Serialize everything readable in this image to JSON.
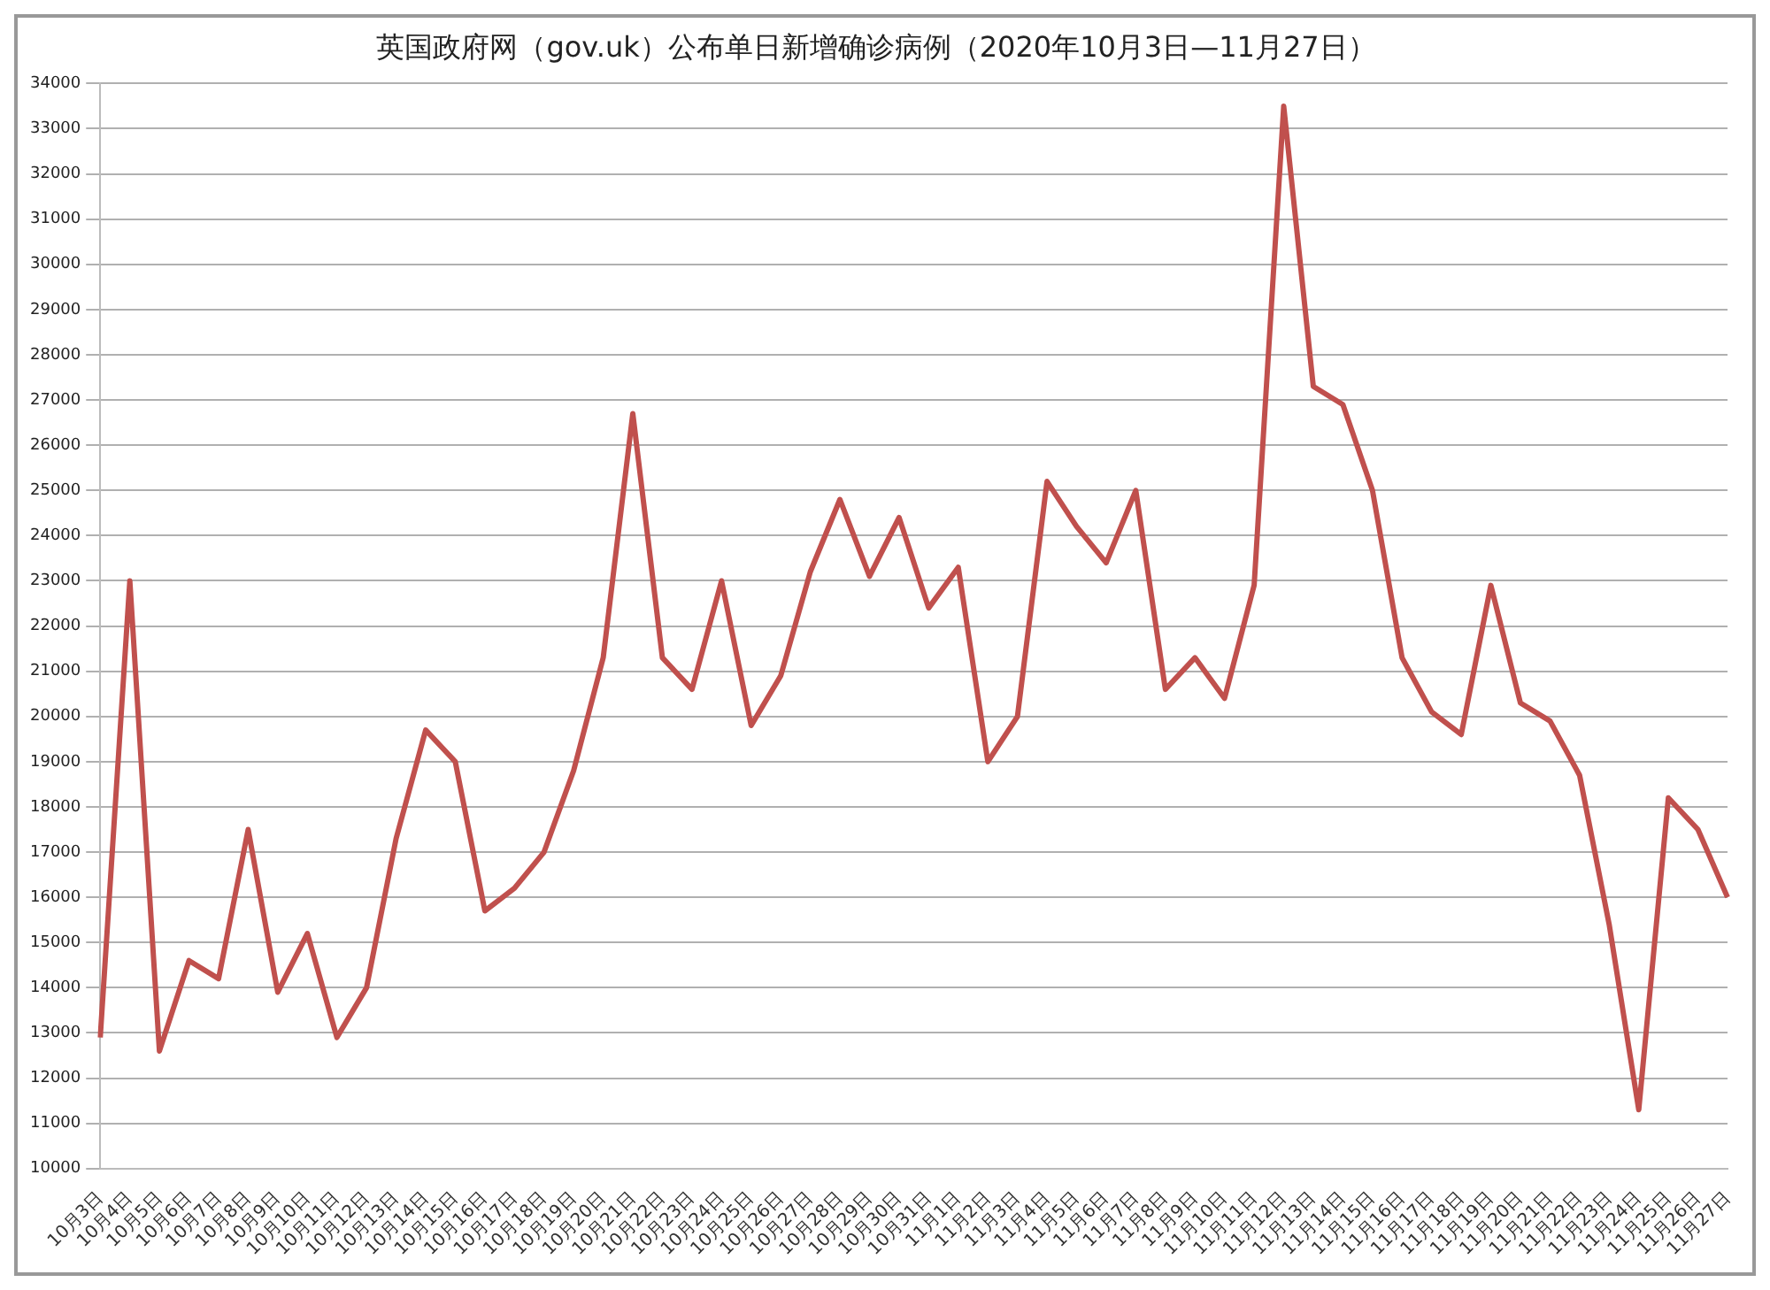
{
  "chart_data": {
    "type": "line",
    "title": "英国政府网（gov.uk）公布单日新增确诊病例（2020年10月3日—11月27日）",
    "categories": [
      "10月3日",
      "10月4日",
      "10月5日",
      "10月6日",
      "10月7日",
      "10月8日",
      "10月9日",
      "10月10日",
      "10月11日",
      "10月12日",
      "10月13日",
      "10月14日",
      "10月15日",
      "10月16日",
      "10月17日",
      "10月18日",
      "10月19日",
      "10月20日",
      "10月21日",
      "10月22日",
      "10月23日",
      "10月24日",
      "10月25日",
      "10月26日",
      "10月27日",
      "10月28日",
      "10月29日",
      "10月30日",
      "10月31日",
      "11月1日",
      "11月2日",
      "11月3日",
      "11月4日",
      "11月5日",
      "11月6日",
      "11月7日",
      "11月8日",
      "11月9日",
      "11月10日",
      "11月11日",
      "11月12日",
      "11月13日",
      "11月14日",
      "11月15日",
      "11月16日",
      "11月17日",
      "11月18日",
      "11月19日",
      "11月20日",
      "11月21日",
      "11月22日",
      "11月23日",
      "11月24日",
      "11月25日",
      "11月26日",
      "11月27日"
    ],
    "series": [
      {
        "color": "#c0504d",
        "values": [
          12900,
          23000,
          12600,
          14600,
          14200,
          17500,
          13900,
          15200,
          12900,
          14000,
          17300,
          19700,
          19000,
          15700,
          16200,
          17000,
          18800,
          21300,
          26700,
          21300,
          20600,
          23000,
          19800,
          20900,
          23200,
          24800,
          23100,
          24400,
          22400,
          23300,
          19000,
          20000,
          25200,
          24200,
          23400,
          25000,
          20600,
          21300,
          20400,
          22900,
          33500,
          27300,
          26900,
          25000,
          21300,
          20100,
          19600,
          22900,
          20300,
          19900,
          18700,
          15400,
          11300,
          18200,
          17500,
          16000
        ]
      }
    ],
    "ylim": [
      10000,
      34000
    ],
    "yticks": [
      10000,
      11000,
      12000,
      13000,
      14000,
      15000,
      16000,
      17000,
      18000,
      19000,
      20000,
      21000,
      22000,
      23000,
      24000,
      25000,
      26000,
      27000,
      28000,
      29000,
      30000,
      31000,
      32000,
      33000,
      34000
    ],
    "grid": "y",
    "legend": false,
    "marker": "none",
    "line_style": "solid"
  }
}
